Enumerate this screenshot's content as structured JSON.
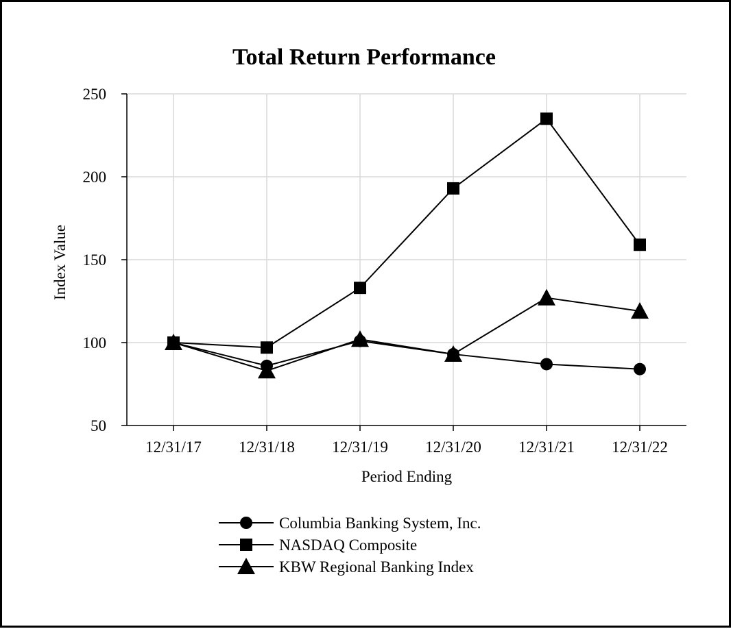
{
  "chart_data": {
    "type": "line",
    "title": "Total Return Performance",
    "xlabel": "Period Ending",
    "ylabel": "Index Value",
    "ylim": [
      50,
      250
    ],
    "yticks": [
      250,
      200,
      150,
      100,
      50
    ],
    "categories": [
      "12/31/17",
      "12/31/18",
      "12/31/19",
      "12/31/20",
      "12/31/21",
      "12/31/22"
    ],
    "grid": true,
    "legend_position": "bottom",
    "series": [
      {
        "name": "Columbia Banking System, Inc.",
        "marker": "circle",
        "color": "#000000",
        "values": [
          100,
          86,
          101,
          93,
          87,
          84
        ]
      },
      {
        "name": "NASDAQ Composite",
        "marker": "square",
        "color": "#000000",
        "values": [
          100,
          97,
          133,
          193,
          235,
          159
        ]
      },
      {
        "name": "KBW Regional Banking Index",
        "marker": "triangle",
        "color": "#000000",
        "values": [
          100,
          83,
          102,
          93,
          127,
          119
        ]
      }
    ]
  }
}
